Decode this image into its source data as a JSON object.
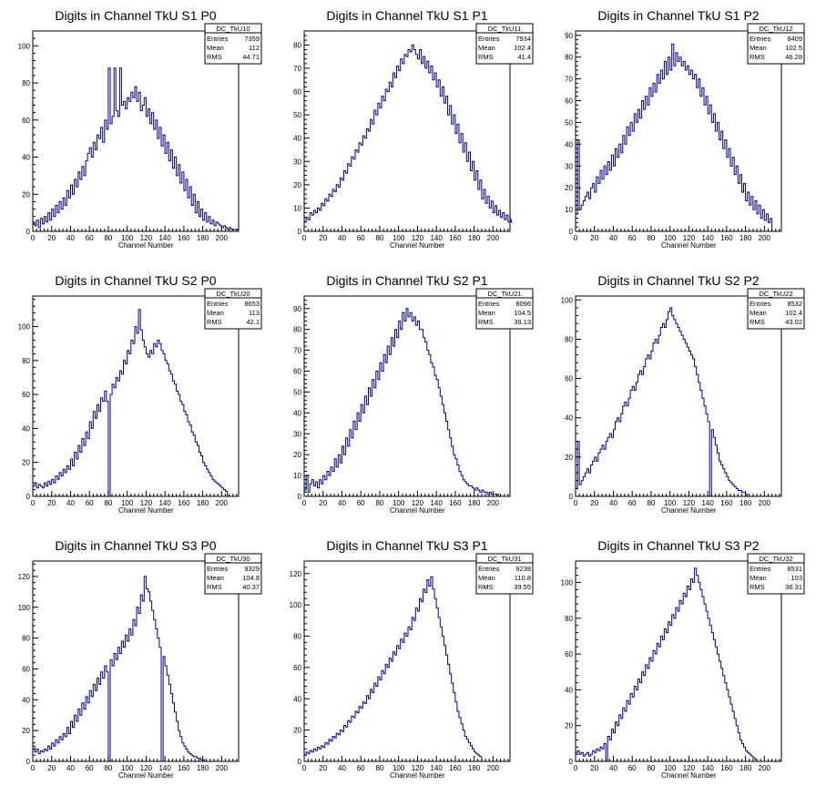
{
  "chart_data": [
    {
      "type": "histogram",
      "title": "Digits in Channel TkU S1 P0",
      "xlabel": "Channel Number",
      "ylabel": "",
      "xlim": [
        0,
        218
      ],
      "ylim": [
        0,
        108
      ],
      "xticks": [
        0,
        20,
        40,
        60,
        80,
        100,
        120,
        140,
        160,
        180,
        200
      ],
      "yticks": [
        0,
        20,
        40,
        60,
        80,
        100
      ],
      "stats": {
        "name": "DC_TkU10",
        "entries_label": "Entries",
        "entries": "7359",
        "mean_label": "Mean",
        "mean": "112",
        "rms_label": "RMS",
        "rms": "44.71"
      },
      "color": "#000080",
      "bin_width": 2,
      "values": [
        5,
        3,
        6,
        2,
        7,
        4,
        8,
        5,
        10,
        6,
        12,
        8,
        14,
        10,
        16,
        12,
        18,
        14,
        22,
        18,
        25,
        20,
        28,
        24,
        32,
        28,
        35,
        30,
        38,
        42,
        45,
        40,
        48,
        44,
        52,
        50,
        56,
        48,
        60,
        55,
        88,
        58,
        62,
        88,
        65,
        62,
        88,
        68,
        70,
        66,
        72,
        70,
        75,
        72,
        78,
        70,
        75,
        65,
        68,
        72,
        62,
        66,
        58,
        64,
        55,
        60,
        50,
        56,
        46,
        52,
        42,
        48,
        38,
        44,
        34,
        40,
        30,
        36,
        26,
        32,
        22,
        28,
        18,
        24,
        14,
        20,
        10,
        16,
        8,
        12,
        6,
        10,
        5,
        8,
        4,
        6,
        3,
        5,
        4,
        3,
        2,
        3,
        2,
        1,
        2,
        1,
        1,
        1,
        1
      ]
    },
    {
      "type": "histogram",
      "title": "Digits in Channel TkU S1 P1",
      "xlabel": "Channel Number",
      "ylabel": "",
      "xlim": [
        0,
        218
      ],
      "ylim": [
        0,
        86
      ],
      "xticks": [
        0,
        20,
        40,
        60,
        80,
        100,
        120,
        140,
        160,
        180,
        200
      ],
      "yticks": [
        0,
        10,
        20,
        30,
        40,
        50,
        60,
        70,
        80
      ],
      "stats": {
        "name": "DC_TkU11",
        "entries_label": "Entries",
        "entries": "7934",
        "mean_label": "Mean",
        "mean": "102.4",
        "rms_label": "RMS",
        "rms": "41.4"
      },
      "color": "#000080",
      "bin_width": 2,
      "values": [
        4,
        6,
        5,
        8,
        7,
        9,
        8,
        10,
        9,
        12,
        11,
        14,
        13,
        16,
        15,
        18,
        17,
        20,
        19,
        23,
        22,
        26,
        25,
        29,
        28,
        32,
        31,
        35,
        34,
        38,
        37,
        41,
        40,
        44,
        43,
        48,
        46,
        52,
        50,
        55,
        53,
        58,
        56,
        61,
        60,
        64,
        62,
        68,
        66,
        71,
        69,
        74,
        72,
        76,
        75,
        78,
        77,
        80,
        78,
        76,
        74,
        78,
        72,
        75,
        70,
        73,
        68,
        71,
        65,
        68,
        62,
        65,
        58,
        62,
        55,
        58,
        50,
        54,
        46,
        50,
        42,
        46,
        38,
        42,
        34,
        38,
        30,
        34,
        26,
        30,
        22,
        26,
        18,
        22,
        14,
        18,
        12,
        15,
        10,
        13,
        8,
        11,
        7,
        9,
        6,
        8,
        5,
        7,
        4,
        6,
        4
      ]
    },
    {
      "type": "histogram",
      "title": "Digits in Channel TkU S1 P2",
      "xlabel": "Channel Number",
      "ylabel": "",
      "xlim": [
        0,
        218
      ],
      "ylim": [
        0,
        92
      ],
      "xticks": [
        0,
        20,
        40,
        60,
        80,
        100,
        120,
        140,
        160,
        180,
        200
      ],
      "yticks": [
        0,
        10,
        20,
        30,
        40,
        50,
        60,
        70,
        80,
        90
      ],
      "stats": {
        "name": "DC_TkU12",
        "entries_label": "Entries",
        "entries": "8409",
        "mean_label": "Mean",
        "mean": "102.5",
        "rms_label": "RMS",
        "rms": "46.28"
      },
      "color": "#000080",
      "bin_width": 2,
      "values": [
        8,
        42,
        10,
        12,
        14,
        16,
        18,
        15,
        20,
        22,
        18,
        25,
        22,
        28,
        24,
        30,
        26,
        32,
        28,
        35,
        30,
        38,
        34,
        40,
        36,
        44,
        40,
        48,
        44,
        50,
        46,
        54,
        50,
        56,
        52,
        60,
        56,
        62,
        58,
        66,
        62,
        68,
        64,
        72,
        68,
        74,
        70,
        78,
        72,
        80,
        74,
        86,
        76,
        82,
        78,
        80,
        76,
        78,
        74,
        76,
        72,
        74,
        70,
        72,
        66,
        70,
        62,
        66,
        58,
        62,
        54,
        58,
        50,
        54,
        46,
        50,
        42,
        46,
        38,
        42,
        34,
        38,
        30,
        34,
        26,
        30,
        22,
        26,
        18,
        22,
        14,
        18,
        12,
        16,
        10,
        14,
        8,
        12,
        6,
        10,
        5,
        8,
        4,
        6
      ]
    },
    {
      "type": "histogram",
      "title": "Digits in Channel TkU S2 P0",
      "xlabel": "Channel Number",
      "ylabel": "",
      "xlim": [
        0,
        218
      ],
      "ylim": [
        0,
        118
      ],
      "xticks": [
        0,
        20,
        40,
        60,
        80,
        100,
        120,
        140,
        160,
        180,
        200
      ],
      "yticks": [
        0,
        20,
        40,
        60,
        80,
        100
      ],
      "stats": {
        "name": "DC_TkU20",
        "entries_label": "Entries",
        "entries": "8653",
        "mean_label": "Mean",
        "mean": "113",
        "rms_label": "RMS",
        "rms": "42.1"
      },
      "color": "#000080",
      "bin_width": 2,
      "values": [
        6,
        8,
        5,
        7,
        6,
        5,
        8,
        6,
        9,
        7,
        10,
        8,
        12,
        10,
        14,
        12,
        16,
        14,
        18,
        16,
        22,
        18,
        26,
        22,
        30,
        26,
        34,
        30,
        38,
        34,
        44,
        40,
        50,
        46,
        54,
        50,
        58,
        56,
        62,
        56,
        0,
        60,
        66,
        64,
        70,
        68,
        74,
        72,
        80,
        78,
        86,
        84,
        92,
        90,
        100,
        96,
        110,
        98,
        92,
        88,
        84,
        82,
        86,
        84,
        90,
        88,
        92,
        90,
        86,
        84,
        80,
        78,
        74,
        72,
        68,
        66,
        62,
        60,
        56,
        54,
        50,
        48,
        44,
        42,
        38,
        36,
        32,
        30,
        26,
        24,
        20,
        18,
        16,
        14,
        12,
        10,
        9,
        8,
        7,
        6,
        5,
        4,
        3
      ]
    },
    {
      "type": "histogram",
      "title": "Digits in Channel TkU S2 P1",
      "xlabel": "Channel Number",
      "ylabel": "",
      "xlim": [
        0,
        218
      ],
      "ylim": [
        0,
        96
      ],
      "xticks": [
        0,
        20,
        40,
        60,
        80,
        100,
        120,
        140,
        160,
        180,
        200
      ],
      "yticks": [
        0,
        10,
        20,
        30,
        40,
        50,
        60,
        70,
        80,
        90
      ],
      "stats": {
        "name": "DC_TkU21",
        "entries_label": "Entries",
        "entries": "8096",
        "mean_label": "Mean",
        "mean": "104.5",
        "rms_label": "RMS",
        "rms": "39.13"
      },
      "color": "#000080",
      "bin_width": 2,
      "values": [
        3,
        10,
        2,
        6,
        8,
        5,
        7,
        4,
        8,
        6,
        10,
        8,
        12,
        10,
        14,
        12,
        18,
        14,
        20,
        16,
        24,
        20,
        28,
        24,
        32,
        28,
        36,
        32,
        40,
        36,
        44,
        40,
        48,
        44,
        52,
        48,
        56,
        52,
        60,
        56,
        64,
        60,
        68,
        64,
        72,
        68,
        76,
        72,
        80,
        76,
        84,
        80,
        88,
        84,
        90,
        86,
        88,
        84,
        86,
        82,
        84,
        80,
        80,
        76,
        74,
        70,
        68,
        64,
        62,
        58,
        56,
        52,
        48,
        44,
        40,
        36,
        32,
        28,
        24,
        20,
        18,
        15,
        12,
        10,
        8,
        7,
        6,
        5,
        5,
        4,
        3,
        4,
        3,
        2,
        3,
        2,
        2,
        1,
        2,
        1,
        1,
        1,
        1
      ]
    },
    {
      "type": "histogram",
      "title": "Digits in Channel TkU S2 P2",
      "xlabel": "Channel Number",
      "ylabel": "",
      "xlim": [
        0,
        218
      ],
      "ylim": [
        0,
        102
      ],
      "xticks": [
        0,
        20,
        40,
        60,
        80,
        100,
        120,
        140,
        160,
        180,
        200
      ],
      "yticks": [
        0,
        20,
        40,
        60,
        80,
        100
      ],
      "stats": {
        "name": "DC_TkU22",
        "entries_label": "Entries",
        "entries": "8532",
        "mean_label": "Mean",
        "mean": "102.4",
        "rms_label": "RMS",
        "rms": "43.02"
      },
      "color": "#000080",
      "bin_width": 2,
      "values": [
        4,
        28,
        6,
        8,
        10,
        12,
        14,
        12,
        16,
        18,
        20,
        18,
        22,
        24,
        26,
        24,
        28,
        30,
        32,
        30,
        34,
        38,
        40,
        38,
        42,
        46,
        48,
        46,
        50,
        54,
        56,
        54,
        58,
        62,
        64,
        62,
        66,
        70,
        72,
        70,
        74,
        78,
        80,
        78,
        82,
        86,
        88,
        86,
        90,
        94,
        96,
        92,
        90,
        88,
        86,
        84,
        82,
        80,
        78,
        76,
        74,
        72,
        70,
        66,
        62,
        58,
        54,
        50,
        46,
        42,
        38,
        0,
        34,
        30,
        26,
        22,
        18,
        16,
        14,
        12,
        10,
        8,
        7,
        6,
        5,
        4,
        3,
        3,
        2,
        2,
        1
      ]
    },
    {
      "type": "histogram",
      "title": "Digits in Channel TkU S3 P0",
      "xlabel": "Channel Number",
      "ylabel": "",
      "xlim": [
        0,
        218
      ],
      "ylim": [
        0,
        130
      ],
      "xticks": [
        0,
        20,
        40,
        60,
        80,
        100,
        120,
        140,
        160,
        180,
        200
      ],
      "yticks": [
        0,
        20,
        40,
        60,
        80,
        100,
        120
      ],
      "stats": {
        "name": "DC_TkU30",
        "entries_label": "Entries",
        "entries": "9329",
        "mean_label": "Mean",
        "mean": "104.8",
        "rms_label": "RMS",
        "rms": "40.37"
      },
      "color": "#000080",
      "bin_width": 2,
      "values": [
        10,
        6,
        8,
        5,
        7,
        6,
        8,
        7,
        10,
        8,
        12,
        10,
        14,
        12,
        16,
        14,
        18,
        16,
        22,
        18,
        26,
        22,
        30,
        26,
        34,
        30,
        38,
        34,
        42,
        38,
        46,
        42,
        50,
        46,
        54,
        50,
        58,
        54,
        62,
        58,
        0,
        66,
        62,
        70,
        66,
        74,
        70,
        78,
        74,
        82,
        78,
        86,
        82,
        92,
        88,
        100,
        96,
        108,
        104,
        120,
        112,
        110,
        104,
        98,
        92,
        86,
        80,
        74,
        0,
        68,
        62,
        56,
        50,
        44,
        38,
        32,
        26,
        20,
        16,
        12,
        10,
        8,
        6,
        5,
        4,
        3,
        3,
        2,
        2,
        1,
        1
      ]
    },
    {
      "type": "histogram",
      "title": "Digits in Channel TkU S3 P1",
      "xlabel": "Channel Number",
      "ylabel": "",
      "xlim": [
        0,
        218
      ],
      "ylim": [
        0,
        128
      ],
      "xticks": [
        0,
        20,
        40,
        60,
        80,
        100,
        120,
        140,
        160,
        180,
        200
      ],
      "yticks": [
        0,
        20,
        40,
        60,
        80,
        100,
        120
      ],
      "stats": {
        "name": "DC_TkU31",
        "entries_label": "Entries",
        "entries": "9238",
        "mean_label": "Mean",
        "mean": "110.8",
        "rms_label": "RMS",
        "rms": "39.55"
      },
      "color": "#000080",
      "bin_width": 2,
      "values": [
        4,
        6,
        5,
        7,
        6,
        8,
        7,
        9,
        8,
        10,
        9,
        12,
        11,
        14,
        13,
        16,
        15,
        18,
        17,
        20,
        19,
        23,
        22,
        26,
        25,
        29,
        28,
        32,
        31,
        35,
        34,
        38,
        37,
        42,
        40,
        46,
        44,
        50,
        48,
        54,
        52,
        58,
        56,
        62,
        60,
        66,
        64,
        70,
        68,
        74,
        72,
        78,
        76,
        82,
        80,
        86,
        84,
        92,
        90,
        98,
        96,
        104,
        102,
        110,
        108,
        116,
        112,
        118,
        110,
        104,
        98,
        92,
        86,
        80,
        74,
        68,
        62,
        56,
        50,
        44,
        38,
        32,
        28,
        24,
        20,
        16,
        14,
        12,
        10,
        8,
        6,
        5,
        4,
        3
      ]
    },
    {
      "type": "histogram",
      "title": "Digits in Channel TkU S3 P2",
      "xlabel": "Channel Number",
      "ylabel": "",
      "xlim": [
        0,
        218
      ],
      "ylim": [
        0,
        112
      ],
      "xticks": [
        0,
        20,
        40,
        60,
        80,
        100,
        120,
        140,
        160,
        180,
        200
      ],
      "yticks": [
        0,
        20,
        40,
        60,
        80,
        100
      ],
      "stats": {
        "name": "DC_TkU32",
        "entries_label": "Entries",
        "entries": "8531",
        "mean_label": "Mean",
        "mean": "103",
        "rms_label": "RMS",
        "rms": "36.31"
      },
      "color": "#000080",
      "bin_width": 2,
      "values": [
        5,
        6,
        4,
        5,
        3,
        4,
        5,
        3,
        4,
        6,
        5,
        7,
        6,
        8,
        7,
        10,
        0,
        14,
        12,
        18,
        16,
        22,
        20,
        26,
        24,
        30,
        28,
        34,
        32,
        38,
        36,
        42,
        40,
        46,
        44,
        50,
        48,
        54,
        52,
        58,
        56,
        62,
        60,
        66,
        64,
        70,
        68,
        74,
        72,
        78,
        76,
        82,
        80,
        86,
        84,
        90,
        88,
        94,
        92,
        98,
        96,
        102,
        100,
        108,
        104,
        100,
        96,
        92,
        88,
        84,
        80,
        76,
        72,
        68,
        64,
        60,
        56,
        52,
        48,
        44,
        40,
        36,
        32,
        28,
        24,
        20,
        16,
        12,
        10,
        8,
        6,
        5,
        4,
        3,
        2,
        1
      ]
    }
  ]
}
